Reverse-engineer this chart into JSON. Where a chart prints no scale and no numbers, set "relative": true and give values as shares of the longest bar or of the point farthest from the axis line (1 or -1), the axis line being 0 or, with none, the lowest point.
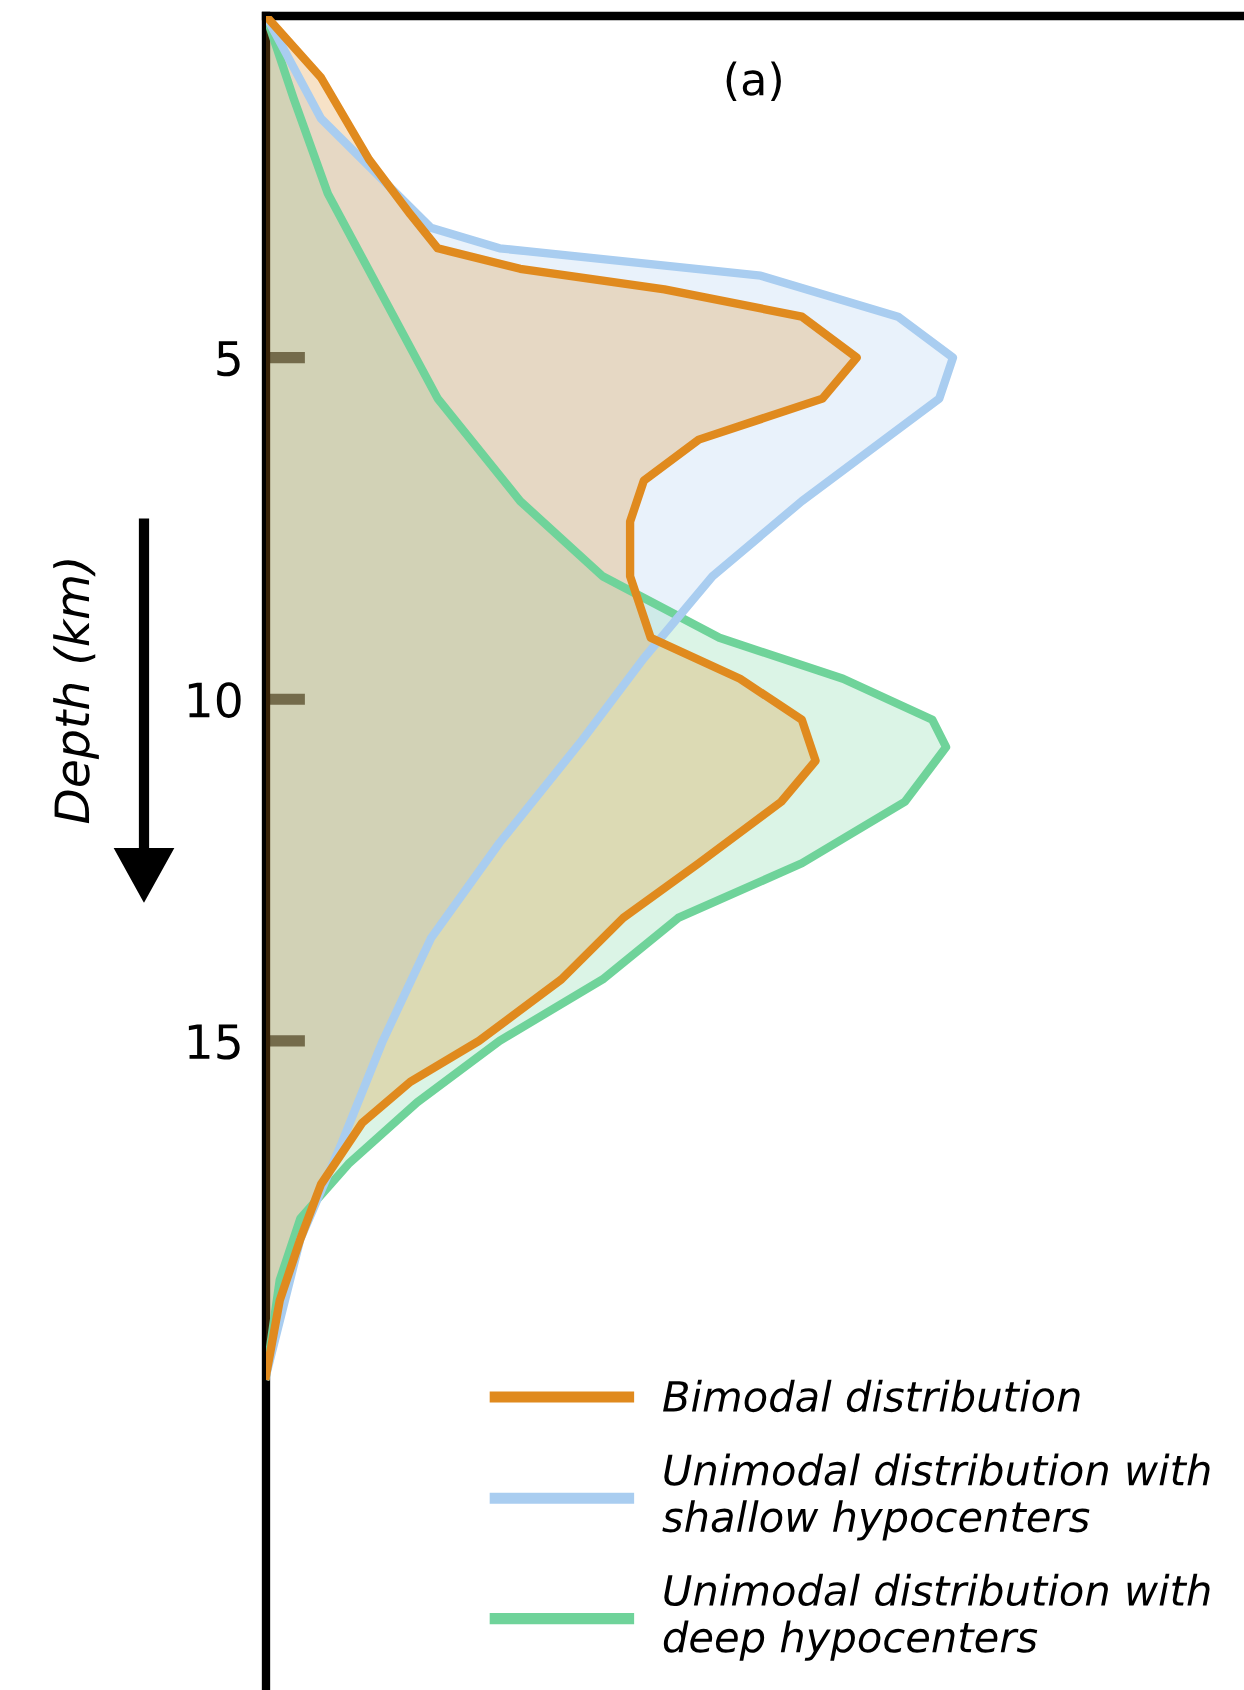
{
  "chart_data": {
    "type": "area",
    "title": "(a)",
    "ylabel": "Depth (km)",
    "orientation": "horizontal",
    "relative": true,
    "ylim": [
      24.5,
      0
    ],
    "yticks": [
      5,
      10,
      15
    ],
    "tick_labels": "y",
    "grid": false,
    "legend": "bottom right",
    "series": [
      {
        "name": "Bimodal distribution",
        "color": "#e08a1e",
        "x": [
          0,
          0.9,
          2.1,
          2.9,
          3.4,
          3.7,
          4.0,
          4.4,
          5.0,
          5.6,
          6.2,
          6.8,
          7.4,
          8.2,
          9.1,
          9.7,
          10.3,
          10.9,
          11.5,
          12.4,
          13.2,
          14.1,
          15.0,
          15.6,
          16.2,
          17.1,
          17.9,
          18.8,
          19.9
        ],
        "values": [
          0,
          0.08,
          0.15,
          0.21,
          0.25,
          0.37,
          0.58,
          0.78,
          0.86,
          0.81,
          0.63,
          0.55,
          0.53,
          0.53,
          0.56,
          0.69,
          0.78,
          0.8,
          0.75,
          0.63,
          0.52,
          0.43,
          0.31,
          0.21,
          0.14,
          0.08,
          0.05,
          0.02,
          0
        ]
      },
      {
        "name": "Unimodal distribution with\nshallow hypocenters",
        "color": "#a9cdf0",
        "x": [
          0,
          1.5,
          2.4,
          3.1,
          3.4,
          3.8,
          4.4,
          5.0,
          5.6,
          6.2,
          7.1,
          8.2,
          9.4,
          10.6,
          12.1,
          13.5,
          15.0,
          16.5,
          17.9,
          19.9
        ],
        "values": [
          0,
          0.08,
          0.17,
          0.24,
          0.34,
          0.72,
          0.92,
          1.0,
          0.98,
          0.9,
          0.78,
          0.65,
          0.55,
          0.46,
          0.34,
          0.24,
          0.17,
          0.11,
          0.05,
          0
        ]
      },
      {
        "name": "Unimodal distribution with\ndeep hypocenters",
        "color": "#6fd39a",
        "x": [
          0,
          1.2,
          2.6,
          4.1,
          5.6,
          7.1,
          8.2,
          9.1,
          9.7,
          10.3,
          10.7,
          11.5,
          12.4,
          13.2,
          14.1,
          15.0,
          15.9,
          16.8,
          17.6,
          18.5,
          19.9
        ],
        "values": [
          0,
          0.04,
          0.09,
          0.17,
          0.25,
          0.37,
          0.49,
          0.66,
          0.84,
          0.97,
          0.99,
          0.93,
          0.78,
          0.6,
          0.49,
          0.34,
          0.22,
          0.12,
          0.05,
          0.02,
          0
        ]
      }
    ]
  }
}
